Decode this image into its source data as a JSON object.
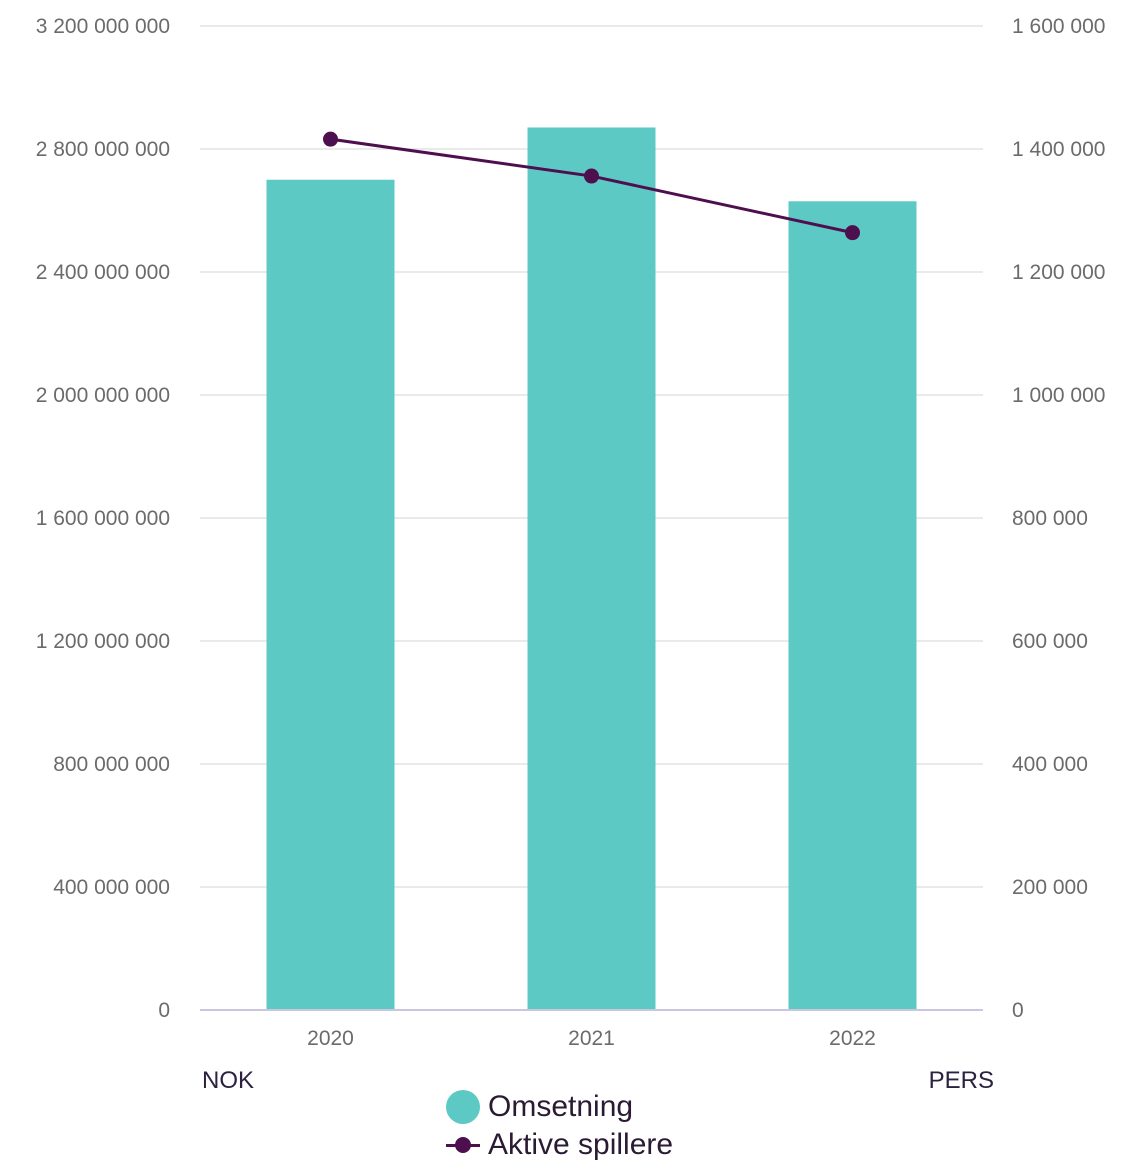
{
  "chart_data": {
    "type": "bar+line",
    "categories": [
      "2020",
      "2021",
      "2022"
    ],
    "series": [
      {
        "name": "Omsetning",
        "type": "bar",
        "axis": "left",
        "color": "#5cc9c4",
        "values": [
          2700000000,
          2870000000,
          2630000000
        ]
      },
      {
        "name": "Aktive spillere",
        "type": "line",
        "axis": "right",
        "color": "#4e0f4e",
        "values": [
          1416000,
          1356000,
          1264000
        ]
      }
    ],
    "left_axis": {
      "unit": "NOK",
      "ylim": [
        0,
        3200000000
      ],
      "ticks": [
        0,
        400000000,
        800000000,
        1200000000,
        1600000000,
        2000000000,
        2400000000,
        2800000000,
        3200000000
      ],
      "tick_labels": [
        "0",
        "400 000 000",
        "800 000 000",
        "1 200 000 000",
        "1 600 000 000",
        "2 000 000 000",
        "2 400 000 000",
        "2 800 000 000",
        "3 200 000 000"
      ]
    },
    "right_axis": {
      "unit": "PERS",
      "ylim": [
        0,
        1600000
      ],
      "ticks": [
        0,
        200000,
        400000,
        600000,
        800000,
        1000000,
        1200000,
        1400000,
        1600000
      ],
      "tick_labels": [
        "0",
        "200 000",
        "400 000",
        "600 000",
        "800 000",
        "1 000 000",
        "1 200 000",
        "1 400 000",
        "1 600 000"
      ]
    },
    "grid": true,
    "legend_position": "bottom-center"
  },
  "colors": {
    "grid": "#e4e4e4",
    "baseline": "#c9c6e0",
    "tick_text": "#6b6b6b",
    "unit_text": "#2b2140"
  }
}
